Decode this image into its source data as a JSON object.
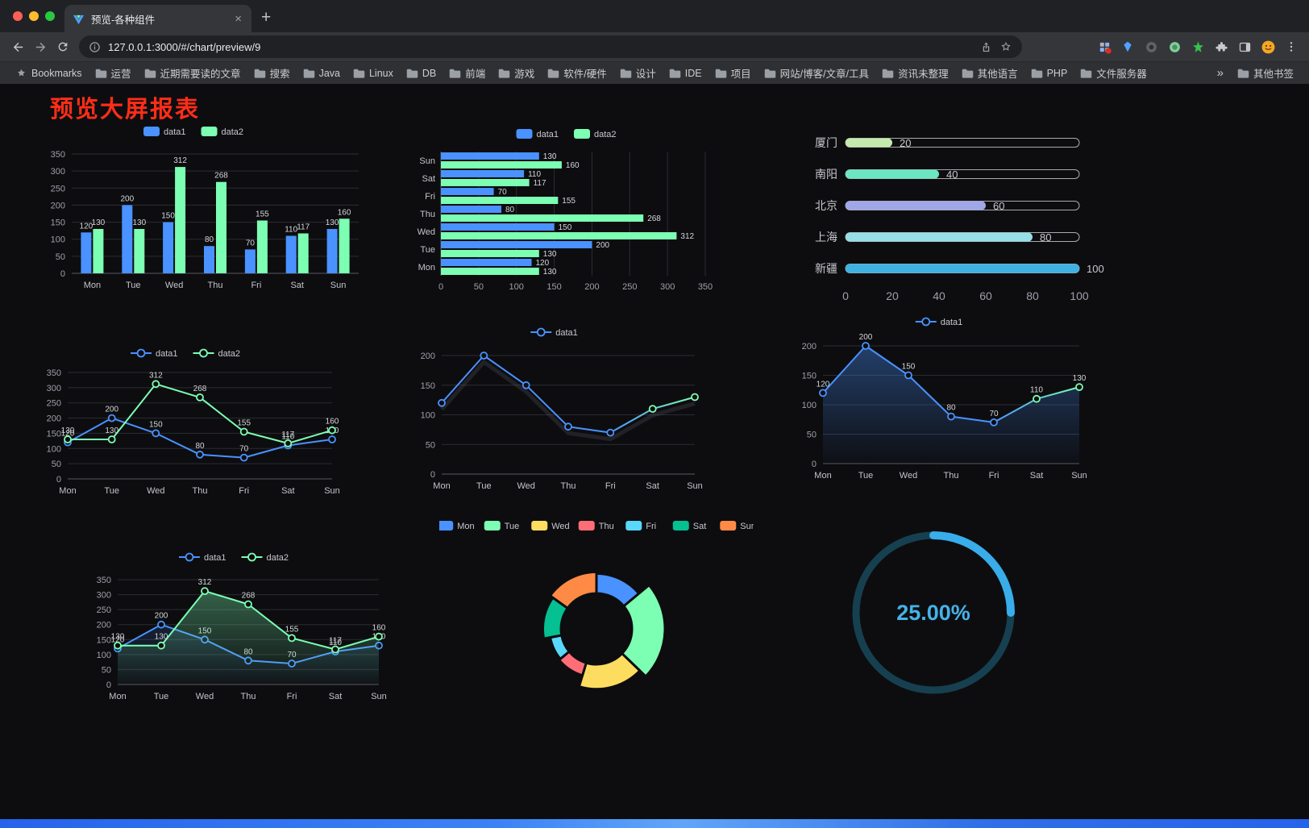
{
  "browser": {
    "tab": {
      "title": "预览-各种组件",
      "close": "×",
      "new_tab": "+"
    },
    "address": {
      "url": "127.0.0.1:3000/#/chart/preview/9"
    },
    "bookmarks": {
      "label": "Bookmarks",
      "items": [
        "运营",
        "近期需要读的文章",
        "搜索",
        "Java",
        "Linux",
        "DB",
        "前端",
        "游戏",
        "软件/硬件",
        "设计",
        "IDE",
        "项目",
        "网站/博客/文章/工具",
        "资讯未整理",
        "其他语言",
        "PHP",
        "文件服务器"
      ],
      "overflow": "»",
      "other": "其他书签"
    }
  },
  "page": {
    "title": "预览大屏报表",
    "title_color": "#ff2d17"
  },
  "chart_data": [
    {
      "id": "bar-vertical",
      "type": "bar",
      "categories": [
        "Mon",
        "Tue",
        "Wed",
        "Thu",
        "Fri",
        "Sat",
        "Sun"
      ],
      "series": [
        {
          "name": "data1",
          "color": "#4992ff",
          "values": [
            120,
            200,
            150,
            80,
            70,
            110,
            130
          ]
        },
        {
          "name": "data2",
          "color": "#7cffb2",
          "values": [
            130,
            130,
            312,
            268,
            155,
            117,
            160
          ]
        }
      ],
      "ylim": [
        0,
        350
      ],
      "ytick": 50,
      "legend_position": "top",
      "grid": true
    },
    {
      "id": "bar-horizontal",
      "type": "bar-horizontal",
      "categories": [
        "Mon",
        "Tue",
        "Wed",
        "Thu",
        "Fri",
        "Sat",
        "Sun"
      ],
      "series": [
        {
          "name": "data1",
          "color": "#4992ff",
          "values": [
            120,
            200,
            150,
            80,
            70,
            110,
            130
          ]
        },
        {
          "name": "data2",
          "color": "#7cffb2",
          "values": [
            130,
            130,
            312,
            268,
            155,
            117,
            160
          ]
        }
      ],
      "xlim": [
        0,
        350
      ],
      "xtick": 50,
      "legend_position": "top",
      "grid": true
    },
    {
      "id": "city-progress",
      "type": "progress",
      "max": 100,
      "ticks": [
        0,
        20,
        40,
        60,
        80,
        100
      ],
      "items": [
        {
          "label": "厦门",
          "value": 20,
          "color": "#c4ebad"
        },
        {
          "label": "南阳",
          "value": 40,
          "color": "#6be6c1"
        },
        {
          "label": "北京",
          "value": 60,
          "color": "#a0a7e6"
        },
        {
          "label": "上海",
          "value": 80,
          "color": "#96dee8"
        },
        {
          "label": "新疆",
          "value": 100,
          "color": "#3fb1e3"
        }
      ]
    },
    {
      "id": "line-basic",
      "type": "line",
      "categories": [
        "Mon",
        "Tue",
        "Wed",
        "Thu",
        "Fri",
        "Sat",
        "Sun"
      ],
      "series": [
        {
          "name": "data1",
          "color": "#4992ff",
          "values": [
            120,
            200,
            150,
            80,
            70,
            110,
            130
          ],
          "labels": true
        },
        {
          "name": "data2",
          "color": "#7cffb2",
          "values": [
            130,
            130,
            312,
            268,
            155,
            117,
            160
          ],
          "labels": true
        }
      ],
      "ylim": [
        0,
        350
      ],
      "ytick": 50,
      "legend_position": "top",
      "grid": true
    },
    {
      "id": "line-gradient",
      "type": "line",
      "categories": [
        "Mon",
        "Tue",
        "Wed",
        "Thu",
        "Fri",
        "Sat",
        "Sun"
      ],
      "series": [
        {
          "name": "data1",
          "color": "#4992ff",
          "gradient": [
            "#4992ff",
            "#7cffb2"
          ],
          "values": [
            120,
            200,
            150,
            80,
            70,
            110,
            130
          ],
          "labels": false,
          "shadow": true
        }
      ],
      "ylim": [
        0,
        200
      ],
      "ytick": 50,
      "legend_position": "top",
      "grid": true
    },
    {
      "id": "line-area",
      "type": "line",
      "categories": [
        "Mon",
        "Tue",
        "Wed",
        "Thu",
        "Fri",
        "Sat",
        "Sun"
      ],
      "series": [
        {
          "name": "data1",
          "color": "#4992ff",
          "gradient": [
            "#4992ff",
            "#7cffb2"
          ],
          "values": [
            120,
            200,
            150,
            80,
            70,
            110,
            130
          ],
          "labels": true,
          "area": true,
          "area_opacity": 0.38
        }
      ],
      "ylim": [
        0,
        200
      ],
      "ytick": 50,
      "legend_position": "top",
      "grid": true
    },
    {
      "id": "line-area-double",
      "type": "line",
      "categories": [
        "Mon",
        "Tue",
        "Wed",
        "Thu",
        "Fri",
        "Sat",
        "Sun"
      ],
      "series": [
        {
          "name": "data1",
          "color": "#4992ff",
          "values": [
            120,
            200,
            150,
            80,
            70,
            110,
            130
          ],
          "labels": true,
          "area": true,
          "area_opacity": 0.15
        },
        {
          "name": "data2",
          "color": "#7cffb2",
          "values": [
            130,
            130,
            312,
            268,
            155,
            117,
            160
          ],
          "labels": true,
          "area": true,
          "area_opacity": 0.35
        }
      ],
      "ylim": [
        0,
        350
      ],
      "ytick": 50,
      "legend_position": "top",
      "grid": true
    },
    {
      "id": "rose-pie",
      "type": "rose",
      "legend_position": "top",
      "items": [
        {
          "name": "Mon",
          "value": 120,
          "color": "#4992ff"
        },
        {
          "name": "Tue",
          "value": 200,
          "color": "#7cffb2"
        },
        {
          "name": "Wed",
          "value": 150,
          "color": "#fddd60"
        },
        {
          "name": "Thu",
          "value": 80,
          "color": "#ff6e76"
        },
        {
          "name": "Fri",
          "value": 70,
          "color": "#58d9f9"
        },
        {
          "name": "Sat",
          "value": 110,
          "color": "#05c091"
        },
        {
          "name": "Sun",
          "value": 130,
          "color": "#ff8a45"
        }
      ]
    },
    {
      "id": "gauge",
      "type": "gauge",
      "value": 25,
      "label": "25.00%",
      "color": "#38ade9",
      "track_color": "#16404f",
      "text_color": "#45b2e8"
    }
  ]
}
